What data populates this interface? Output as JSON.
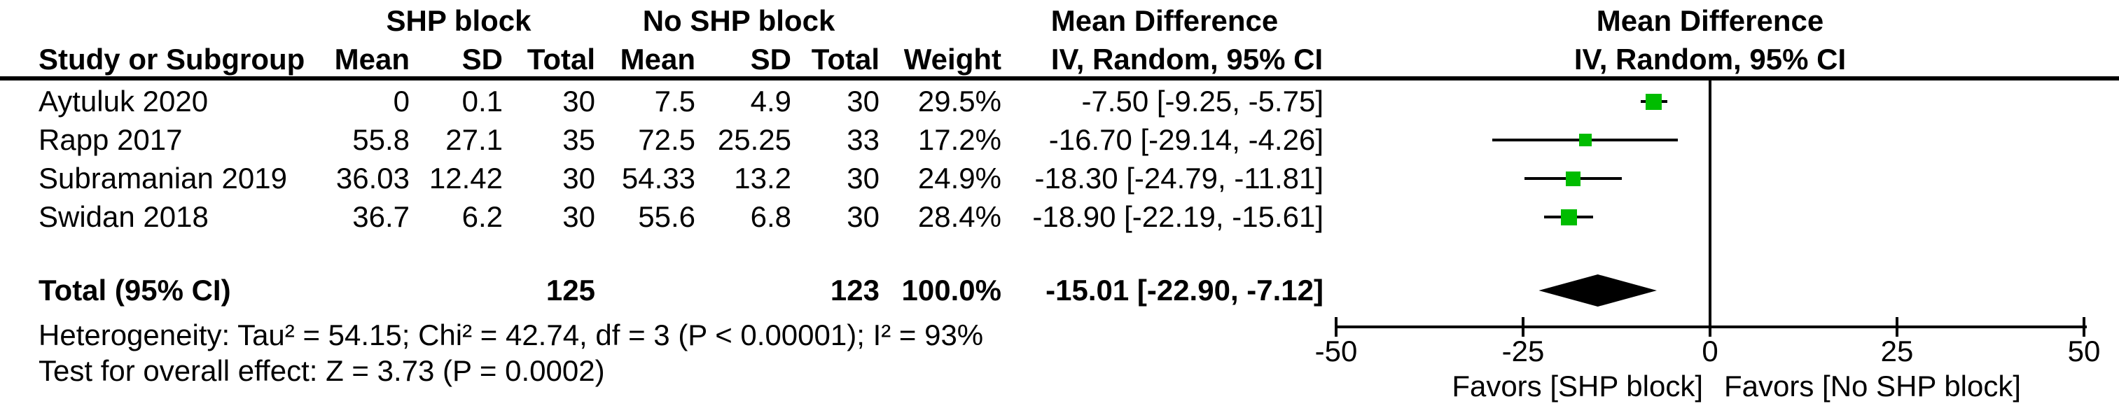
{
  "table": {
    "header": {
      "group_shp": "SHP block",
      "group_no_shp": "No SHP block",
      "group_md_text": "Mean Difference",
      "group_md_plot": "Mean Difference",
      "col_study": "Study or Subgroup",
      "col_mean1": "Mean",
      "col_sd1": "SD",
      "col_total1": "Total",
      "col_mean2": "Mean",
      "col_sd2": "SD",
      "col_total2": "Total",
      "col_weight": "Weight",
      "col_ci": "IV, Random, 95% CI",
      "col_ci_plot": "IV, Random, 95% CI"
    },
    "studies": [
      {
        "name": "Aytuluk 2020",
        "mean1": "0",
        "sd1": "0.1",
        "total1": "30",
        "mean2": "7.5",
        "sd2": "4.9",
        "total2": "30",
        "weight": "29.5%",
        "ci_text": "-7.50 [-9.25, -5.75]"
      },
      {
        "name": "Rapp 2017",
        "mean1": "55.8",
        "sd1": "27.1",
        "total1": "35",
        "mean2": "72.5",
        "sd2": "25.25",
        "total2": "33",
        "weight": "17.2%",
        "ci_text": "-16.70 [-29.14, -4.26]"
      },
      {
        "name": "Subramanian 2019",
        "mean1": "36.03",
        "sd1": "12.42",
        "total1": "30",
        "mean2": "54.33",
        "sd2": "13.2",
        "total2": "30",
        "weight": "24.9%",
        "ci_text": "-18.30 [-24.79, -11.81]"
      },
      {
        "name": "Swidan 2018",
        "mean1": "36.7",
        "sd1": "6.2",
        "total1": "30",
        "mean2": "55.6",
        "sd2": "6.8",
        "total2": "30",
        "weight": "28.4%",
        "ci_text": "-18.90 [-22.19, -15.61]"
      }
    ],
    "total_row": {
      "label": "Total (95% CI)",
      "total1": "125",
      "total2": "123",
      "weight": "100.0%",
      "ci_text": "-15.01 [-22.90, -7.12]"
    },
    "footnotes": {
      "heterogeneity": "Heterogeneity: Tau² = 54.15; Chi² = 42.74, df = 3 (P < 0.00001); I² = 93%",
      "overall_effect": "Test for overall effect: Z = 3.73 (P = 0.0002)"
    }
  },
  "chart_data": {
    "type": "scatter",
    "subtype": "forest-plot",
    "title": "Mean Difference — IV, Random, 95% CI",
    "xlim": [
      -50,
      50
    ],
    "x_ticks": [
      -50,
      -25,
      0,
      25,
      50
    ],
    "x_tick_labels": [
      "-50",
      "-25",
      "0",
      "25",
      "50"
    ],
    "zero_reference_line": 0,
    "grid": false,
    "favors_left": "Favors [SHP block]",
    "favors_right": "Favors [No SHP block]",
    "points": [
      {
        "name": "Aytuluk 2020",
        "md": -7.5,
        "ci_low": -9.25,
        "ci_high": -5.75,
        "weight_pct": 29.5
      },
      {
        "name": "Rapp 2017",
        "md": -16.7,
        "ci_low": -29.14,
        "ci_high": -4.26,
        "weight_pct": 17.2
      },
      {
        "name": "Subramanian 2019",
        "md": -18.3,
        "ci_low": -24.79,
        "ci_high": -11.81,
        "weight_pct": 24.9
      },
      {
        "name": "Swidan 2018",
        "md": -18.9,
        "ci_low": -22.19,
        "ci_high": -15.61,
        "weight_pct": 28.4
      }
    ],
    "summary": {
      "label": "Total (95% CI)",
      "md": -15.01,
      "ci_low": -22.9,
      "ci_high": -7.12
    }
  },
  "colors": {
    "marker_green": "#00BC00",
    "diamond_black": "#000000",
    "axis_black": "#000000",
    "text_black": "#000000",
    "background": "#FFFFFF"
  }
}
